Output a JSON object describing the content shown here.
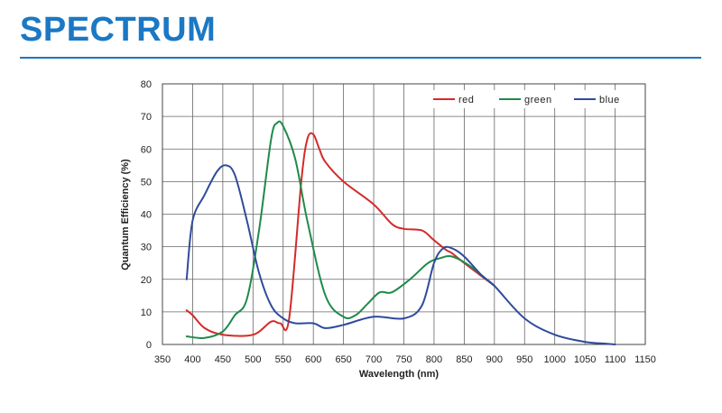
{
  "header": {
    "title": "SPECTRUM"
  },
  "chart_data": {
    "type": "line",
    "xlabel": "Wavelength (nm)",
    "ylabel": "Quantum Efficiency (%)",
    "xlim": [
      350,
      1150
    ],
    "ylim": [
      0,
      80
    ],
    "xticks": [
      350,
      400,
      450,
      500,
      550,
      600,
      650,
      700,
      750,
      800,
      850,
      900,
      950,
      1000,
      1050,
      1100,
      1150
    ],
    "yticks": [
      0,
      10,
      20,
      30,
      40,
      50,
      60,
      70,
      80
    ],
    "grid": true,
    "legend": "top-right",
    "series": [
      {
        "name": "red",
        "color": "#d42a2a",
        "x": [
          390,
          400,
          420,
          450,
          500,
          530,
          545,
          560,
          580,
          590,
          600,
          610,
          620,
          650,
          700,
          730,
          750,
          780,
          800,
          820,
          830,
          850,
          900
        ],
        "y": [
          10.5,
          9,
          5,
          3,
          3,
          7,
          6.5,
          8,
          50,
          63,
          64.5,
          60,
          56,
          50,
          43,
          37,
          35.5,
          35,
          32,
          29,
          28,
          25,
          18
        ]
      },
      {
        "name": "green",
        "color": "#1f8a4a",
        "x": [
          390,
          420,
          450,
          470,
          490,
          510,
          530,
          540,
          550,
          570,
          590,
          620,
          650,
          670,
          690,
          710,
          730,
          760,
          790,
          810,
          830,
          860,
          900
        ],
        "y": [
          2.5,
          2,
          4,
          9,
          14,
          35,
          63,
          68,
          67,
          57,
          38,
          15,
          8.5,
          9,
          12.5,
          16,
          16,
          20,
          25,
          26.5,
          27,
          24,
          18
        ]
      },
      {
        "name": "blue",
        "color": "#2f4b9c",
        "x": [
          390,
          400,
          420,
          440,
          455,
          470,
          490,
          510,
          530,
          550,
          570,
          600,
          620,
          650,
          700,
          750,
          780,
          800,
          815,
          830,
          850,
          880,
          900,
          950,
          1000,
          1050,
          1080,
          1100
        ],
        "y": [
          20,
          38,
          46,
          53,
          55,
          52,
          38,
          22,
          12,
          8,
          6.5,
          6.5,
          5,
          6,
          8.5,
          8,
          12,
          25,
          29.5,
          29.5,
          27,
          21,
          18,
          8,
          3,
          0.8,
          0.3,
          0
        ]
      }
    ]
  }
}
